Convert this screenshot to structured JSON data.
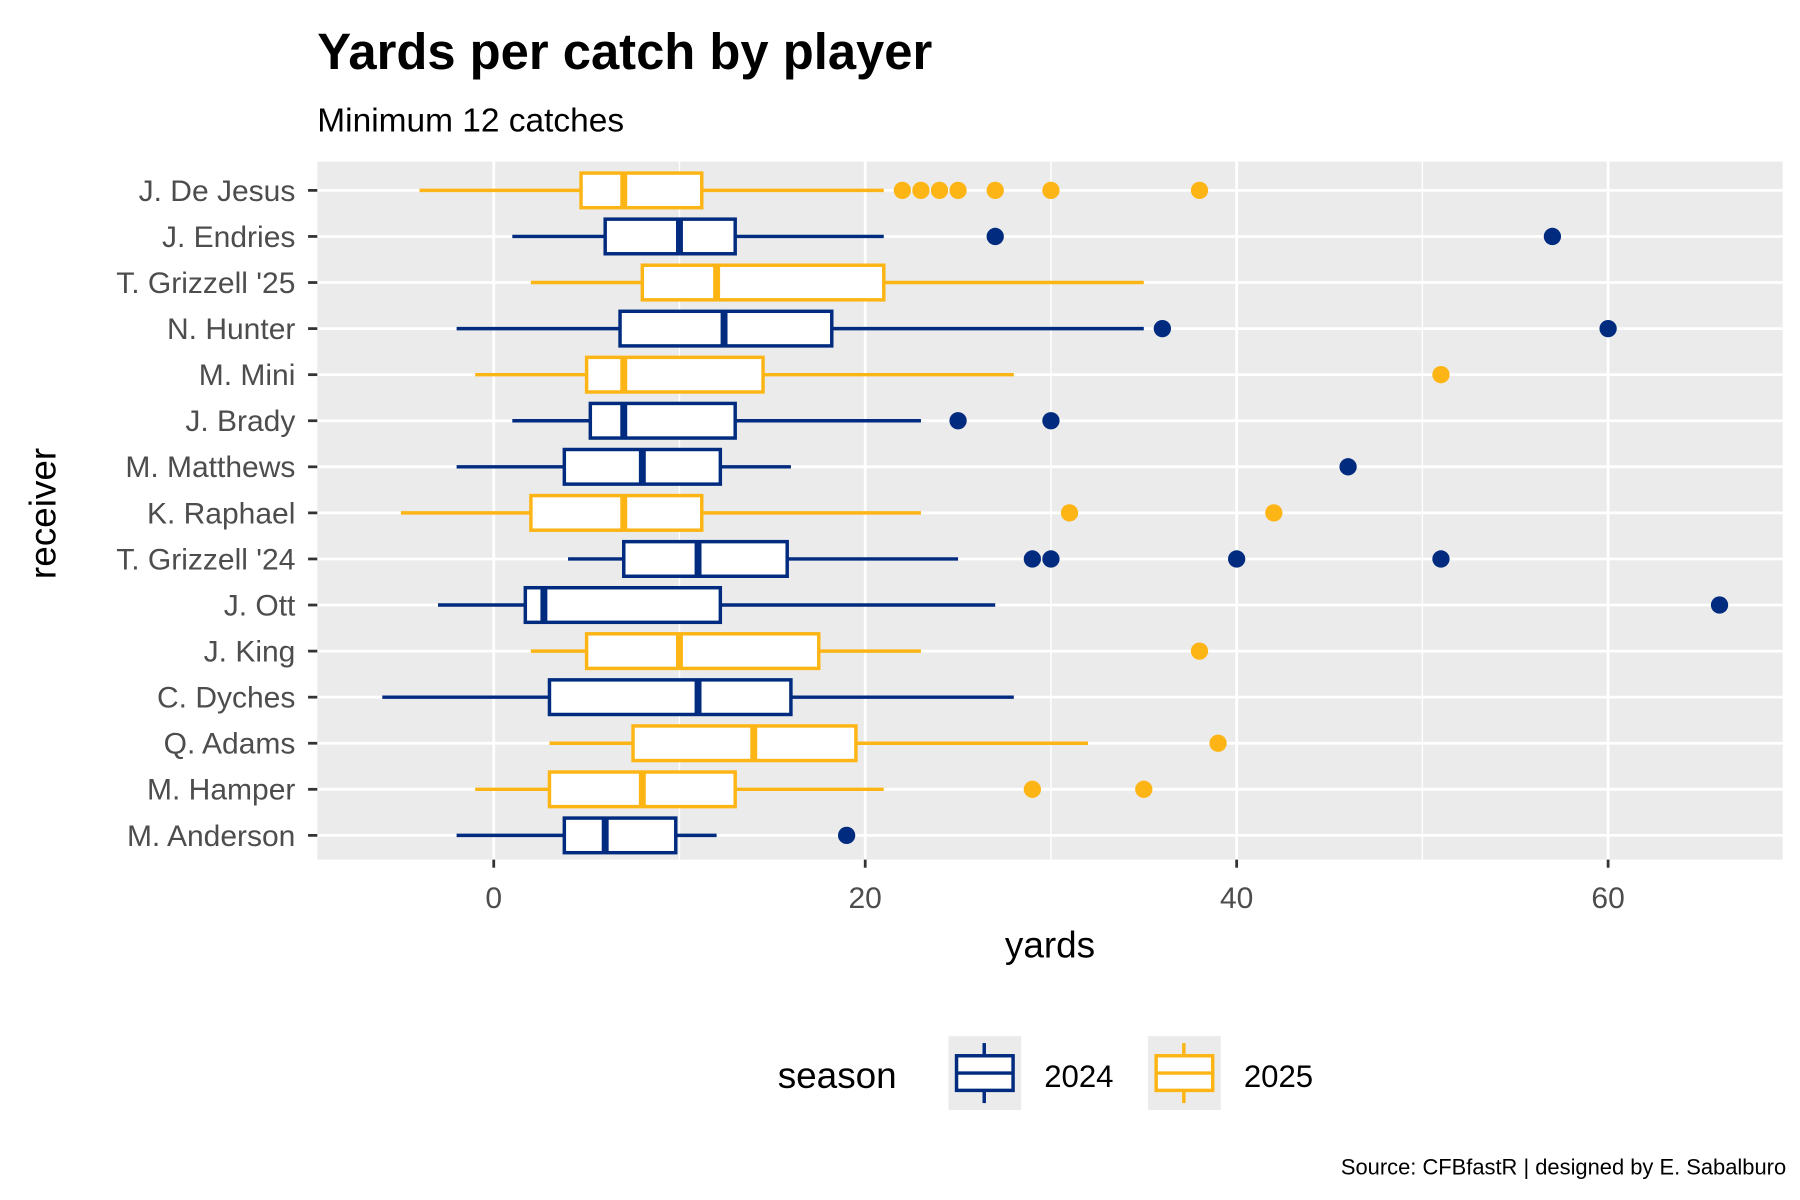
{
  "chart_data": {
    "type": "boxplot",
    "title": "Yards per catch by player",
    "subtitle": "Minimum 12 catches",
    "xlabel": "yards",
    "ylabel": "receiver",
    "caption": "Source: CFBfastR | designed by E. Sabalburo",
    "xlim": [
      -9.5,
      69.4
    ],
    "xticks": [
      0,
      20,
      40,
      60
    ],
    "xtick_labels": [
      "0",
      "20",
      "40",
      "60"
    ],
    "grid": true,
    "legend": {
      "title": "season",
      "placement": "bottom",
      "entries": [
        {
          "label": "2024",
          "color": "#002B7F"
        },
        {
          "label": "2025",
          "color": "#FDB515"
        }
      ]
    },
    "receivers": [
      {
        "name": "J. De Jesus",
        "season": "2025",
        "lower": -4,
        "q1": 4.7,
        "median": 7,
        "q3": 11.2,
        "upper": 21,
        "outliers": [
          22,
          23,
          24,
          25,
          27,
          30,
          38
        ]
      },
      {
        "name": "J. Endries",
        "season": "2024",
        "lower": 1,
        "q1": 6,
        "median": 10,
        "q3": 13,
        "upper": 21,
        "outliers": [
          27,
          57
        ]
      },
      {
        "name": "T. Grizzell '25",
        "season": "2025",
        "lower": 2,
        "q1": 8,
        "median": 12,
        "q3": 21,
        "upper": 35,
        "outliers": []
      },
      {
        "name": "N. Hunter",
        "season": "2024",
        "lower": -2,
        "q1": 6.8,
        "median": 12.4,
        "q3": 18.2,
        "upper": 35,
        "outliers": [
          36,
          60
        ]
      },
      {
        "name": "M. Mini",
        "season": "2025",
        "lower": -1,
        "q1": 5,
        "median": 7,
        "q3": 14.5,
        "upper": 28,
        "outliers": [
          51
        ]
      },
      {
        "name": "J. Brady",
        "season": "2024",
        "lower": 1,
        "q1": 5.2,
        "median": 7,
        "q3": 13,
        "upper": 23,
        "outliers": [
          25,
          30
        ]
      },
      {
        "name": "M. Matthews",
        "season": "2024",
        "lower": -2,
        "q1": 3.8,
        "median": 8,
        "q3": 12.2,
        "upper": 16,
        "outliers": [
          46
        ]
      },
      {
        "name": "K. Raphael",
        "season": "2025",
        "lower": -5,
        "q1": 2,
        "median": 7,
        "q3": 11.2,
        "upper": 23,
        "outliers": [
          31,
          42
        ]
      },
      {
        "name": "T. Grizzell '24",
        "season": "2024",
        "lower": 4,
        "q1": 7,
        "median": 11,
        "q3": 15.8,
        "upper": 25,
        "outliers": [
          29,
          30,
          40,
          51
        ]
      },
      {
        "name": "J. Ott",
        "season": "2024",
        "lower": -3,
        "q1": 1.7,
        "median": 2.7,
        "q3": 12.2,
        "upper": 27,
        "outliers": [
          66
        ]
      },
      {
        "name": "J. King",
        "season": "2025",
        "lower": 2,
        "q1": 5,
        "median": 10,
        "q3": 17.5,
        "upper": 23,
        "outliers": [
          38
        ]
      },
      {
        "name": "C. Dyches",
        "season": "2024",
        "lower": -6,
        "q1": 3,
        "median": 11,
        "q3": 16,
        "upper": 28,
        "outliers": []
      },
      {
        "name": "Q. Adams",
        "season": "2025",
        "lower": 3,
        "q1": 7.5,
        "median": 14,
        "q3": 19.5,
        "upper": 32,
        "outliers": [
          39
        ]
      },
      {
        "name": "M. Hamper",
        "season": "2025",
        "lower": -1,
        "q1": 3,
        "median": 8,
        "q3": 13,
        "upper": 21,
        "outliers": [
          29,
          35
        ]
      },
      {
        "name": "M. Anderson",
        "season": "2024",
        "lower": -2,
        "q1": 3.8,
        "median": 6,
        "q3": 9.8,
        "upper": 12,
        "outliers": [
          19
        ]
      }
    ]
  }
}
